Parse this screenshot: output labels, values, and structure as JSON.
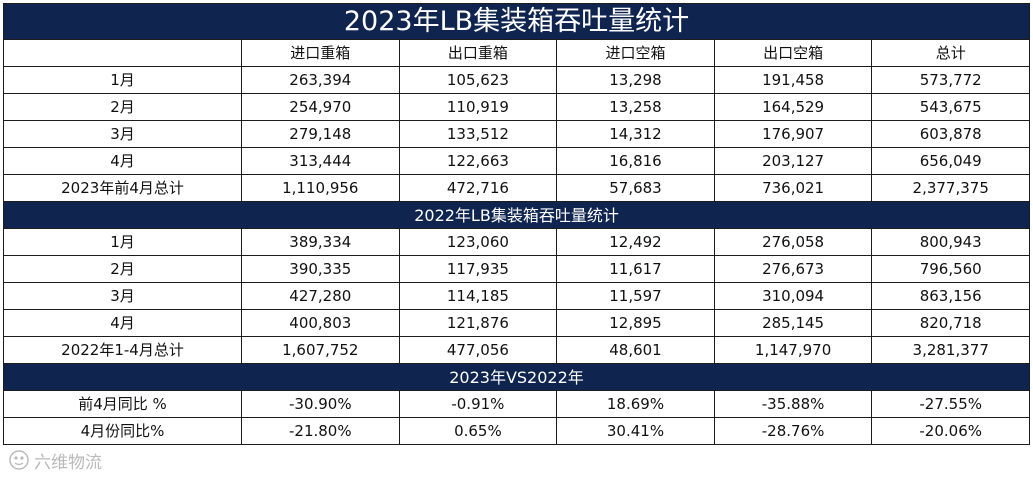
{
  "title": "2023年LB集装箱吞吐量统计",
  "columns": [
    "",
    "进口重箱",
    "出口重箱",
    "进口空箱",
    "出口空箱",
    "总计"
  ],
  "section2023": {
    "rows": [
      [
        "1月",
        "263,394",
        "105,623",
        "13,298",
        "191,458",
        "573,772"
      ],
      [
        "2月",
        "254,970",
        "110,919",
        "13,258",
        "164,529",
        "543,675"
      ],
      [
        "3月",
        "279,148",
        "133,512",
        "14,312",
        "176,907",
        "603,878"
      ],
      [
        "4月",
        "313,444",
        "122,663",
        "16,816",
        "203,127",
        "656,049"
      ],
      [
        "2023年前4月总计",
        "1,110,956",
        "472,716",
        "57,683",
        "736,021",
        "2,377,375"
      ]
    ]
  },
  "section2022": {
    "title": "2022年LB集装箱吞吐量统计",
    "rows": [
      [
        "1月",
        "389,334",
        "123,060",
        "12,492",
        "276,058",
        "800,943"
      ],
      [
        "2月",
        "390,335",
        "117,935",
        "11,617",
        "276,673",
        "796,560"
      ],
      [
        "3月",
        "427,280",
        "114,185",
        "11,597",
        "310,094",
        "863,156"
      ],
      [
        "4月",
        "400,803",
        "121,876",
        "12,895",
        "285,145",
        "820,718"
      ],
      [
        "2022年1-4月总计",
        "1,607,752",
        "477,056",
        "48,601",
        "1,147,970",
        "3,281,377"
      ]
    ]
  },
  "comparison": {
    "title": "2023年VS2022年",
    "rows": [
      [
        "前4月同比 %",
        "-30.90%",
        "-0.91%",
        "18.69%",
        "-35.88%",
        "-27.55%"
      ],
      [
        "4月份同比%",
        "-21.80%",
        "0.65%",
        "30.41%",
        "-28.76%",
        "-20.06%"
      ]
    ]
  },
  "watermark": {
    "text": "六维物流",
    "icon": "logo-icon"
  },
  "colors": {
    "header_bg": "#0f2550",
    "header_text": "#ffffff",
    "border": "#1c1c1c"
  }
}
